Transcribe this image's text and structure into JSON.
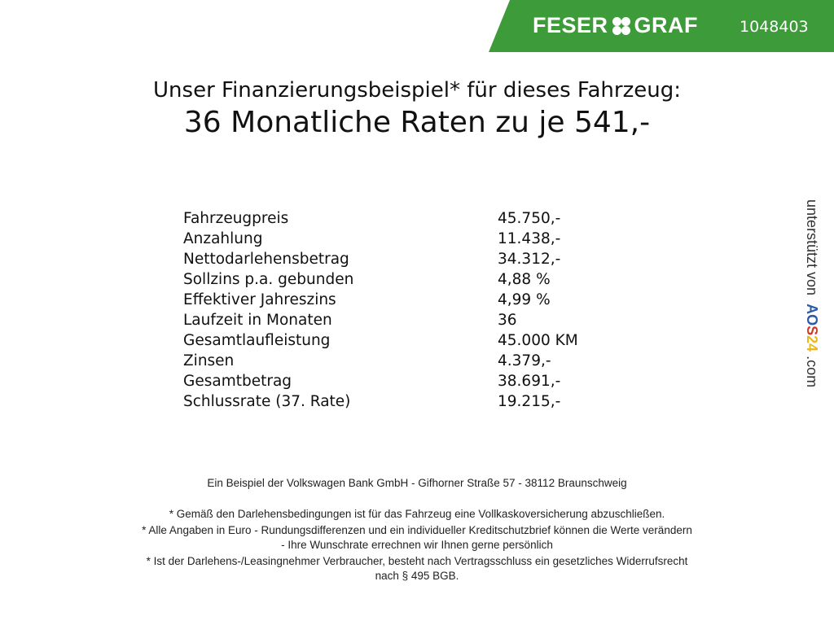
{
  "header": {
    "brand": "FESER",
    "brand2": "GRAF",
    "vehicle_number": "1048403",
    "brand_color": "#3e9b3a"
  },
  "title": {
    "line1": "Unser Finanzierungsbeispiel* für dieses Fahrzeug:",
    "line2": "36 Monatliche Raten zu je 541,-"
  },
  "rows": [
    {
      "label": "Fahrzeugpreis",
      "value": "45.750,-"
    },
    {
      "label": "Anzahlung",
      "value": "11.438,-"
    },
    {
      "label": "Nettodarlehensbetrag",
      "value": "34.312,-"
    },
    {
      "label": "Sollzins p.a. gebunden",
      "value": "4,88 %"
    },
    {
      "label": "Effektiver Jahreszins",
      "value": "4,99 %"
    },
    {
      "label": "Laufzeit in Monaten",
      "value": "36"
    },
    {
      "label": "Gesamtlaufleistung",
      "value": "45.000 KM"
    },
    {
      "label": "Zinsen",
      "value": "4.379,-"
    },
    {
      "label": "Gesamtbetrag",
      "value": "38.691,-"
    },
    {
      "label": "Schlussrate (37. Rate)",
      "value": "19.215,-"
    }
  ],
  "side": {
    "text": "unterstützt von",
    "logo_a": "AO",
    "logo_b": "S",
    "logo_c": "24",
    "domain": ".com"
  },
  "footer": {
    "bank": "Ein Beispiel der Volkswagen Bank GmbH - Gifhorner Straße 57 - 38112 Braunschweig",
    "note1": "* Gemäß den Darlehensbedingungen ist für das Fahrzeug eine Vollkaskoversicherung abzuschließen.",
    "note2a": "* Alle Angaben in Euro - Rundungsdifferenzen und ein individueller Kreditschutzbrief können die Werte verändern",
    "note2b": "- Ihre Wunschrate errechnen wir Ihnen gerne persönlich",
    "note3a": "* Ist der Darlehens-/Leasingnehmer Verbraucher, besteht nach Vertragsschluss ein gesetzliches Widerrufsrecht",
    "note3b": "nach § 495 BGB."
  }
}
